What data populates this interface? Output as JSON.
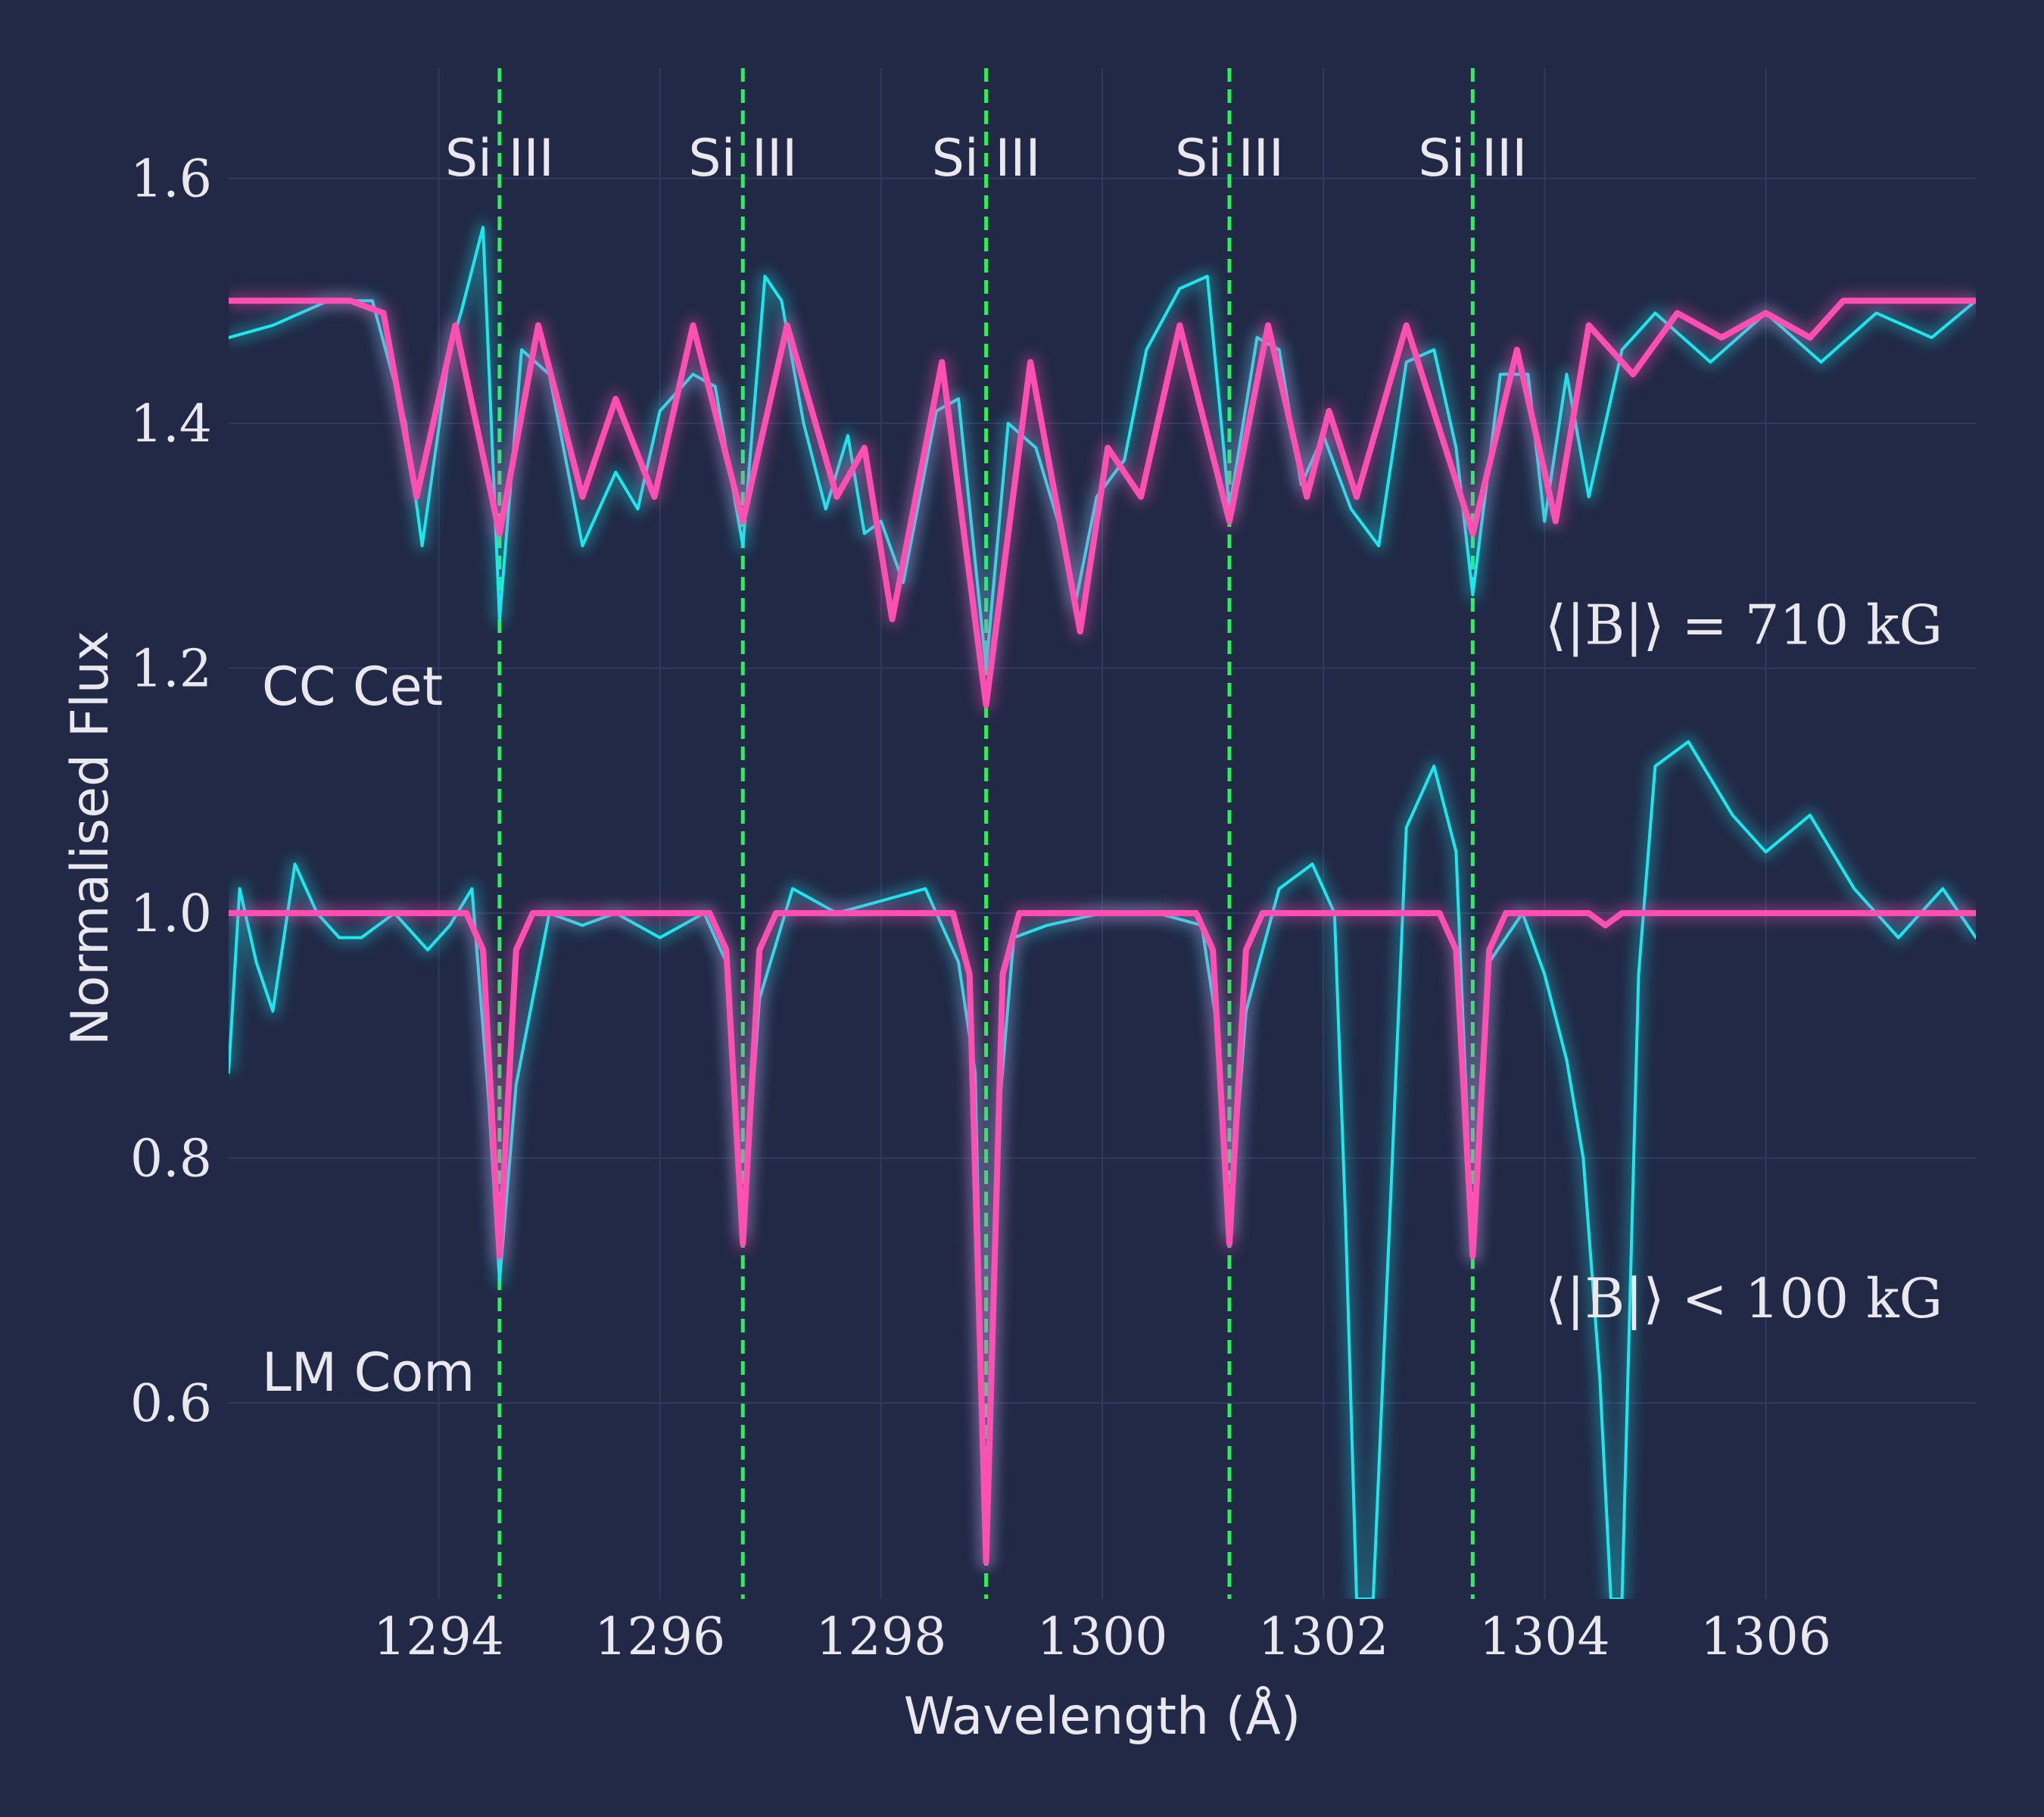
{
  "chart_data": {
    "type": "line",
    "xlabel": "Wavelength (Å)",
    "ylabel": "Normalised Flux",
    "xlim": [
      1292.1,
      1307.9
    ],
    "ylim": [
      0.44,
      1.69
    ],
    "x_ticks": [
      {
        "value": 1294,
        "label": "1294"
      },
      {
        "value": 1296,
        "label": "1296"
      },
      {
        "value": 1298,
        "label": "1298"
      },
      {
        "value": 1300,
        "label": "1300"
      },
      {
        "value": 1302,
        "label": "1302"
      },
      {
        "value": 1304,
        "label": "1304"
      },
      {
        "value": 1306,
        "label": "1306"
      }
    ],
    "y_ticks": [
      {
        "value": 0.6,
        "label": "0.6"
      },
      {
        "value": 0.8,
        "label": "0.8"
      },
      {
        "value": 1.0,
        "label": "1.0"
      },
      {
        "value": 1.2,
        "label": "1.2"
      },
      {
        "value": 1.4,
        "label": "1.4"
      },
      {
        "value": 1.6,
        "label": "1.6"
      }
    ],
    "grid": true,
    "line_markers": [
      {
        "x": 1294.55,
        "label": "Si III"
      },
      {
        "x": 1296.75,
        "label": "Si III"
      },
      {
        "x": 1298.95,
        "label": "Si III"
      },
      {
        "x": 1301.15,
        "label": "Si III"
      },
      {
        "x": 1303.35,
        "label": "Si III"
      }
    ],
    "annotations": [
      {
        "text": "CC Cet",
        "x": 1292.4,
        "y": 1.17
      },
      {
        "text": "LM Com",
        "x": 1292.4,
        "y": 0.61
      },
      {
        "text": "⟨|B|⟩ = 710 kG",
        "x": 1307.6,
        "y": 1.22
      },
      {
        "text": "⟨|B|⟩ < 100 kG",
        "x": 1307.6,
        "y": 0.67
      }
    ],
    "series": [
      {
        "style": "observed",
        "offset": 1.5,
        "x": [
          1292.1,
          1292.5,
          1293.0,
          1293.4,
          1293.7,
          1293.85,
          1294.1,
          1294.2,
          1294.4,
          1294.55,
          1294.75,
          1295.0,
          1295.3,
          1295.6,
          1295.8,
          1296.0,
          1296.3,
          1296.5,
          1296.75,
          1296.95,
          1297.1,
          1297.3,
          1297.5,
          1297.7,
          1297.85,
          1298.0,
          1298.2,
          1298.5,
          1298.7,
          1298.95,
          1299.15,
          1299.4,
          1299.6,
          1299.75,
          1299.95,
          1300.2,
          1300.4,
          1300.7,
          1300.95,
          1301.15,
          1301.4,
          1301.6,
          1301.8,
          1302.0,
          1302.25,
          1302.5,
          1302.75,
          1303.0,
          1303.2,
          1303.35,
          1303.6,
          1303.85,
          1304.0,
          1304.2,
          1304.4,
          1304.7,
          1305.0,
          1305.5,
          1306.0,
          1306.5,
          1307.0,
          1307.5,
          1307.9
        ],
        "y": [
          1.47,
          1.48,
          1.5,
          1.5,
          1.4,
          1.3,
          1.46,
          1.49,
          1.56,
          1.24,
          1.46,
          1.44,
          1.3,
          1.36,
          1.33,
          1.41,
          1.44,
          1.43,
          1.3,
          1.52,
          1.5,
          1.4,
          1.33,
          1.39,
          1.31,
          1.32,
          1.27,
          1.41,
          1.42,
          1.2,
          1.4,
          1.38,
          1.32,
          1.25,
          1.34,
          1.37,
          1.46,
          1.51,
          1.52,
          1.33,
          1.47,
          1.46,
          1.35,
          1.39,
          1.33,
          1.3,
          1.45,
          1.46,
          1.38,
          1.26,
          1.44,
          1.44,
          1.32,
          1.44,
          1.34,
          1.46,
          1.49,
          1.45,
          1.49,
          1.45,
          1.49,
          1.47,
          1.5
        ]
      },
      {
        "style": "model",
        "offset": 1.5,
        "x": [
          1292.1,
          1293.2,
          1293.5,
          1293.8,
          1294.15,
          1294.55,
          1294.9,
          1295.3,
          1295.6,
          1295.95,
          1296.3,
          1296.75,
          1297.15,
          1297.6,
          1297.85,
          1298.1,
          1298.55,
          1298.95,
          1299.35,
          1299.8,
          1300.05,
          1300.35,
          1300.7,
          1301.15,
          1301.5,
          1301.85,
          1302.05,
          1302.3,
          1302.75,
          1303.35,
          1303.75,
          1304.1,
          1304.4,
          1304.8,
          1305.2,
          1305.6,
          1306.0,
          1306.4,
          1306.7,
          1307.9
        ],
        "y": [
          1.5,
          1.5,
          1.49,
          1.34,
          1.48,
          1.31,
          1.48,
          1.34,
          1.42,
          1.34,
          1.48,
          1.32,
          1.48,
          1.34,
          1.38,
          1.24,
          1.45,
          1.17,
          1.45,
          1.23,
          1.38,
          1.34,
          1.48,
          1.32,
          1.48,
          1.34,
          1.41,
          1.34,
          1.48,
          1.31,
          1.46,
          1.32,
          1.48,
          1.44,
          1.49,
          1.47,
          1.49,
          1.47,
          1.5,
          1.5
        ]
      },
      {
        "style": "observed",
        "offset": 1.0,
        "x": [
          1292.1,
          1292.2,
          1292.35,
          1292.5,
          1292.7,
          1292.9,
          1293.1,
          1293.3,
          1293.6,
          1293.9,
          1294.1,
          1294.3,
          1294.45,
          1294.55,
          1294.7,
          1295.0,
          1295.3,
          1295.6,
          1296.0,
          1296.4,
          1296.6,
          1296.75,
          1296.9,
          1297.2,
          1297.6,
          1298.0,
          1298.4,
          1298.7,
          1298.85,
          1298.95,
          1299.05,
          1299.2,
          1299.5,
          1300.0,
          1300.5,
          1300.9,
          1301.05,
          1301.15,
          1301.3,
          1301.6,
          1301.9,
          1302.1,
          1302.2,
          1302.3,
          1302.45,
          1302.6,
          1302.75,
          1303.0,
          1303.2,
          1303.35,
          1303.5,
          1303.8,
          1304.0,
          1304.2,
          1304.35,
          1304.5,
          1304.6,
          1304.7,
          1304.85,
          1305.0,
          1305.3,
          1305.7,
          1306.0,
          1306.4,
          1306.8,
          1307.2,
          1307.6,
          1307.9
        ],
        "y": [
          0.87,
          1.02,
          0.96,
          0.92,
          1.04,
          1.0,
          0.98,
          0.98,
          1.0,
          0.97,
          0.99,
          1.02,
          0.85,
          0.7,
          0.86,
          1.0,
          0.99,
          1.0,
          0.98,
          1.0,
          0.96,
          0.74,
          0.93,
          1.02,
          1.0,
          1.01,
          1.02,
          0.96,
          0.87,
          0.47,
          0.82,
          0.98,
          0.99,
          1.0,
          1.0,
          0.99,
          0.9,
          0.74,
          0.92,
          1.02,
          1.04,
          1.0,
          0.75,
          0.44,
          0.44,
          0.75,
          1.07,
          1.12,
          1.05,
          0.72,
          0.96,
          1.0,
          0.95,
          0.88,
          0.8,
          0.62,
          0.44,
          0.44,
          0.95,
          1.12,
          1.14,
          1.08,
          1.05,
          1.08,
          1.02,
          0.98,
          1.02,
          0.98
        ]
      },
      {
        "style": "model",
        "offset": 1.0,
        "x": [
          1292.1,
          1294.25,
          1294.4,
          1294.55,
          1294.7,
          1294.85,
          1296.45,
          1296.6,
          1296.75,
          1296.9,
          1297.05,
          1298.65,
          1298.8,
          1298.95,
          1299.1,
          1299.25,
          1300.85,
          1301.0,
          1301.15,
          1301.3,
          1301.45,
          1303.05,
          1303.2,
          1303.35,
          1303.5,
          1303.65,
          1304.4,
          1304.55,
          1304.7,
          1307.9
        ],
        "y": [
          1.0,
          1.0,
          0.97,
          0.72,
          0.97,
          1.0,
          1.0,
          0.97,
          0.73,
          0.97,
          1.0,
          1.0,
          0.95,
          0.47,
          0.95,
          1.0,
          1.0,
          0.97,
          0.73,
          0.97,
          1.0,
          1.0,
          0.97,
          0.72,
          0.97,
          1.0,
          1.0,
          0.99,
          1.0,
          1.0
        ]
      }
    ]
  }
}
